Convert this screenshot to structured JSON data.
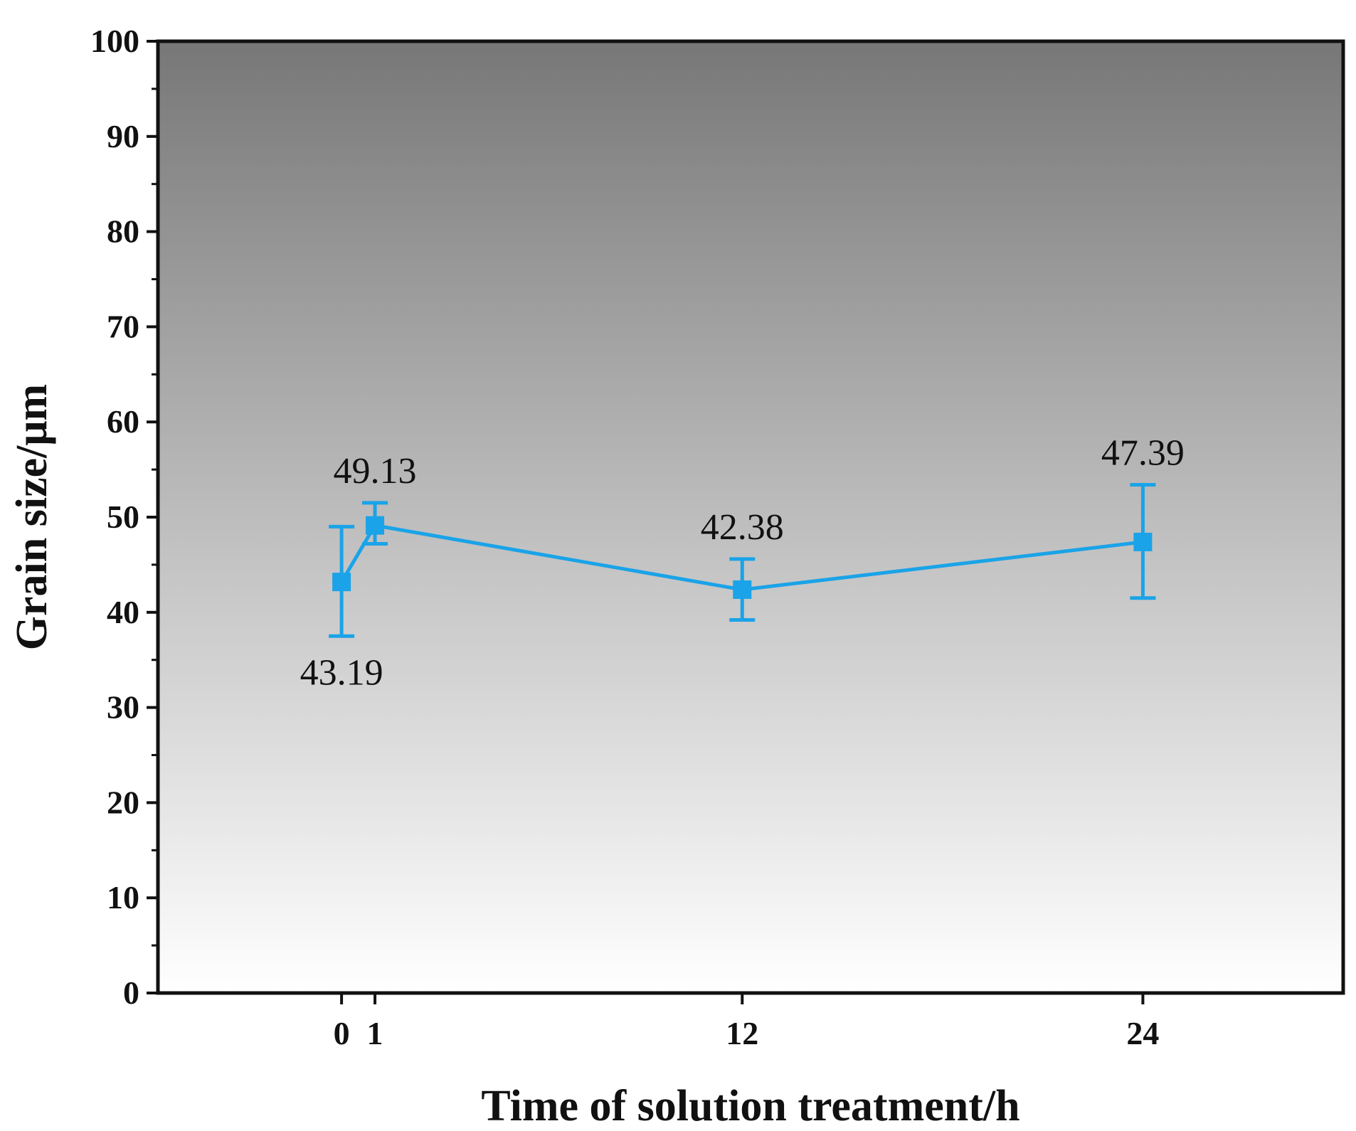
{
  "chart_data": {
    "type": "line",
    "title": "",
    "xlabel": "Time of solution treatment/h",
    "ylabel": "Grain size/μm",
    "xlim": [
      -5.5,
      30
    ],
    "ylim": [
      0,
      100
    ],
    "xticks": [
      0,
      1,
      12,
      24
    ],
    "xtick_labels": [
      "0",
      "1",
      "12",
      "24"
    ],
    "yticks": [
      0,
      10,
      20,
      30,
      40,
      50,
      60,
      70,
      80,
      90,
      100
    ],
    "ytick_labels": [
      "0",
      "10",
      "20",
      "30",
      "40",
      "50",
      "60",
      "70",
      "80",
      "90",
      "100"
    ],
    "grid": false,
    "background": "vertical gradient, dark gray at top to white at bottom",
    "series": [
      {
        "name": "Grain size",
        "color": "#1aa3e8",
        "marker": "square",
        "x": [
          0,
          1,
          12,
          24
        ],
        "y": [
          43.19,
          49.13,
          42.38,
          47.39
        ],
        "error_low": [
          37.5,
          47.2,
          39.2,
          41.5
        ],
        "error_high": [
          49.0,
          51.5,
          45.6,
          53.4
        ],
        "labels": [
          "43.19",
          "49.13",
          "42.38",
          "47.39"
        ],
        "label_positions": [
          "below",
          "above",
          "above",
          "above"
        ]
      }
    ]
  },
  "colors": {
    "series": "#1aa3e8",
    "gradient_top": "#777777",
    "gradient_bottom": "#ffffff",
    "axis": "#111111"
  }
}
